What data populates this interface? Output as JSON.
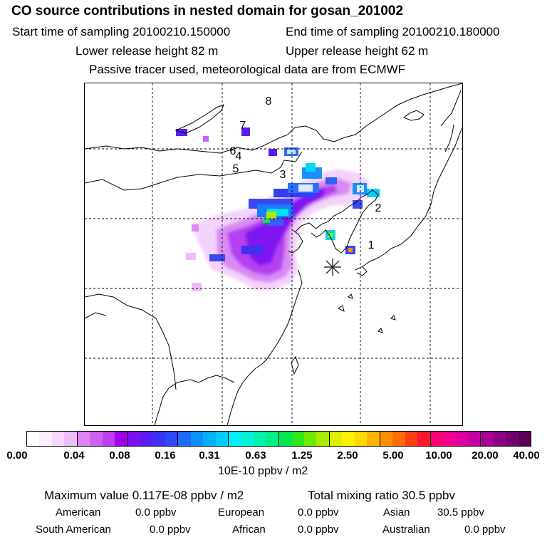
{
  "header": {
    "title": "CO  source contributions in nested domain for gosan_201002",
    "start_label": "Start time of sampling 20100210.150000",
    "end_label": "End time of sampling 20100210.180000",
    "lower_label": "Lower release height   82 m",
    "upper_label": "Upper release height   62 m",
    "tracer_label": "Passive tracer used, meteorological data are from ECMWF"
  },
  "map": {
    "markers": [
      "1",
      "2",
      "3",
      "4",
      "5",
      "6",
      "7",
      "8"
    ],
    "station_symbol": "✳"
  },
  "colorbar": {
    "ticks": [
      "0.00",
      "0.04",
      "0.08",
      "0.16",
      "0.31",
      "0.63",
      "1.25",
      "2.50",
      "5.00",
      "10.00",
      "20.00",
      "40.00"
    ],
    "unit": "10E-10 ppbv / m2",
    "colors": [
      "#ffffff",
      "#fbeefe",
      "#f5d6fc",
      "#efbcfa",
      "#dc86f5",
      "#cc60f2",
      "#bc40f0",
      "#a000ee",
      "#7c10f0",
      "#5a1cf0",
      "#3e30f4",
      "#2c48f8",
      "#1a6cfa",
      "#0c90fc",
      "#00b0fe",
      "#00ccfe",
      "#00f2f6",
      "#00f2d8",
      "#00f0b0",
      "#00ee88",
      "#00ea50",
      "#30e818",
      "#70e800",
      "#a8ec00",
      "#ddf000",
      "#fff000",
      "#ffd800",
      "#ffb400",
      "#ff9000",
      "#ff6c00",
      "#ff4010",
      "#ff1830",
      "#ff0070",
      "#f00090",
      "#dc00a0",
      "#c400a4",
      "#a80096",
      "#8c0084",
      "#740070",
      "#5c0058"
    ]
  },
  "summary": {
    "max_value": "Maximum value  0.117E-08 ppbv / m2",
    "total_mixing": "Total mixing ratio      30.5 ppbv",
    "american_label": "American",
    "american_value": "0.0 ppbv",
    "european_label": "European",
    "european_value": "0.0 ppbv",
    "asian_label": "Asian",
    "asian_value": "30.5 ppbv",
    "south_american_label": "South American",
    "south_american_value": "0.0 ppbv",
    "african_label": "African",
    "african_value": "0.0 ppbv",
    "australian_label": "Australian",
    "australian_value": "0.0 ppbv"
  }
}
